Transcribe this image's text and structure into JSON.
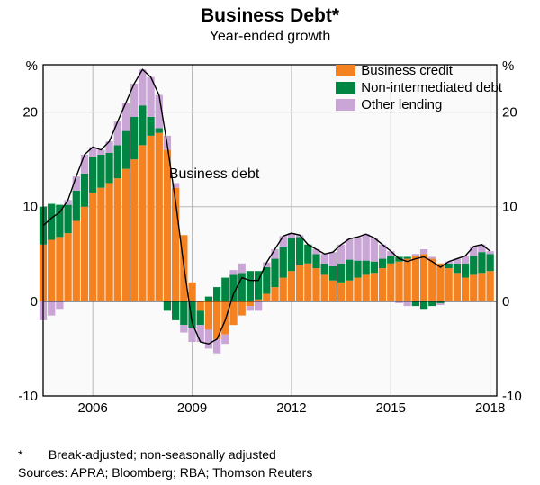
{
  "title": "Business Debt*",
  "subtitle": "Year-ended growth",
  "chart": {
    "type": "stacked-area-bar-with-line",
    "x_start_year": 2004.5,
    "x_end_year": 2018.2,
    "x_ticks_years": [
      2006,
      2009,
      2012,
      2015,
      2018
    ],
    "ylim": [
      -10,
      25
    ],
    "y_ticks": [
      -10,
      0,
      10,
      20
    ],
    "y_unit": "%",
    "background_color": "#ffffff",
    "plot_bg": "#fafafa",
    "grid_color": "#b8b8b8",
    "border_color": "#000000",
    "line_color": "#000000",
    "line_width": 1.4,
    "series_colors": {
      "business_credit": "#f58220",
      "non_intermediated": "#008542",
      "other_lending": "#c9a6d6"
    },
    "legend_items": [
      {
        "label": "Business credit",
        "color": "#f58220"
      },
      {
        "label": "Non-intermediated debt",
        "color": "#008542"
      },
      {
        "label": "Other lending",
        "color": "#c9a6d6"
      }
    ],
    "annotation": {
      "text": "Business debt",
      "year": 2008.3,
      "y": 13
    },
    "data": [
      {
        "yr": 2004.5,
        "credit": 6.0,
        "non": 4.0,
        "other": -2.0
      },
      {
        "yr": 2004.75,
        "credit": 6.5,
        "non": 3.8,
        "other": -1.5
      },
      {
        "yr": 2005.0,
        "credit": 6.8,
        "non": 3.4,
        "other": -0.8
      },
      {
        "yr": 2005.25,
        "credit": 7.2,
        "non": 3.0,
        "other": 0.5
      },
      {
        "yr": 2005.5,
        "credit": 8.5,
        "non": 3.2,
        "other": 1.5
      },
      {
        "yr": 2005.75,
        "credit": 10.0,
        "non": 3.5,
        "other": 2.0
      },
      {
        "yr": 2006.0,
        "credit": 11.5,
        "non": 3.8,
        "other": 1.0
      },
      {
        "yr": 2006.25,
        "credit": 12.0,
        "non": 3.5,
        "other": 0.5
      },
      {
        "yr": 2006.5,
        "credit": 12.5,
        "non": 3.2,
        "other": 1.2
      },
      {
        "yr": 2006.75,
        "credit": 13.0,
        "non": 3.5,
        "other": 2.5
      },
      {
        "yr": 2007.0,
        "credit": 14.0,
        "non": 4.0,
        "other": 3.0
      },
      {
        "yr": 2007.25,
        "credit": 15.0,
        "non": 4.5,
        "other": 3.5
      },
      {
        "yr": 2007.5,
        "credit": 16.5,
        "non": 4.2,
        "other": 3.8
      },
      {
        "yr": 2007.75,
        "credit": 17.5,
        "non": 2.0,
        "other": 4.2
      },
      {
        "yr": 2008.0,
        "credit": 17.8,
        "non": 0.5,
        "other": 3.5
      },
      {
        "yr": 2008.25,
        "credit": 16.0,
        "non": -1.0,
        "other": 1.5
      },
      {
        "yr": 2008.5,
        "credit": 12.0,
        "non": -2.0,
        "other": 0.5
      },
      {
        "yr": 2008.75,
        "credit": 7.0,
        "non": -2.5,
        "other": -0.8
      },
      {
        "yr": 2009.0,
        "credit": 2.0,
        "non": -2.8,
        "other": -1.5
      },
      {
        "yr": 2009.25,
        "credit": -1.0,
        "non": -1.5,
        "other": -1.8
      },
      {
        "yr": 2009.5,
        "credit": -3.0,
        "non": 0.5,
        "other": -2.0
      },
      {
        "yr": 2009.75,
        "credit": -4.0,
        "non": 1.5,
        "other": -1.5
      },
      {
        "yr": 2010.0,
        "credit": -3.5,
        "non": 2.5,
        "other": -1.0
      },
      {
        "yr": 2010.25,
        "credit": -2.5,
        "non": 2.8,
        "other": 0.5
      },
      {
        "yr": 2010.5,
        "credit": -1.5,
        "non": 3.0,
        "other": 1.0
      },
      {
        "yr": 2010.75,
        "credit": -0.5,
        "non": 3.2,
        "other": -0.5
      },
      {
        "yr": 2011.0,
        "credit": 0.2,
        "non": 3.0,
        "other": -1.0
      },
      {
        "yr": 2011.25,
        "credit": 0.8,
        "non": 2.8,
        "other": 0.5
      },
      {
        "yr": 2011.5,
        "credit": 1.5,
        "non": 3.0,
        "other": 1.0
      },
      {
        "yr": 2011.75,
        "credit": 2.5,
        "non": 3.2,
        "other": 1.2
      },
      {
        "yr": 2012.0,
        "credit": 3.2,
        "non": 3.5,
        "other": 0.5
      },
      {
        "yr": 2012.25,
        "credit": 3.8,
        "non": 3.0,
        "other": 0.2
      },
      {
        "yr": 2012.5,
        "credit": 4.0,
        "non": 2.0,
        "other": 0.0
      },
      {
        "yr": 2012.75,
        "credit": 3.5,
        "non": 1.5,
        "other": 0.5
      },
      {
        "yr": 2013.0,
        "credit": 2.8,
        "non": 1.2,
        "other": 1.0
      },
      {
        "yr": 2013.25,
        "credit": 2.2,
        "non": 1.5,
        "other": 1.5
      },
      {
        "yr": 2013.5,
        "credit": 2.0,
        "non": 2.0,
        "other": 2.0
      },
      {
        "yr": 2013.75,
        "credit": 2.2,
        "non": 2.2,
        "other": 2.2
      },
      {
        "yr": 2014.0,
        "credit": 2.5,
        "non": 1.8,
        "other": 2.5
      },
      {
        "yr": 2014.25,
        "credit": 2.8,
        "non": 1.5,
        "other": 2.8
      },
      {
        "yr": 2014.5,
        "credit": 3.0,
        "non": 1.2,
        "other": 2.5
      },
      {
        "yr": 2014.75,
        "credit": 3.5,
        "non": 1.0,
        "other": 1.5
      },
      {
        "yr": 2015.0,
        "credit": 4.0,
        "non": 0.8,
        "other": 0.5
      },
      {
        "yr": 2015.25,
        "credit": 4.2,
        "non": 0.5,
        "other": -0.2
      },
      {
        "yr": 2015.5,
        "credit": 4.5,
        "non": 0.2,
        "other": -0.5
      },
      {
        "yr": 2015.75,
        "credit": 4.8,
        "non": -0.5,
        "other": 0.2
      },
      {
        "yr": 2016.0,
        "credit": 5.0,
        "non": -0.8,
        "other": 0.5
      },
      {
        "yr": 2016.25,
        "credit": 4.5,
        "non": -0.5,
        "other": 0.2
      },
      {
        "yr": 2016.5,
        "credit": 4.0,
        "non": -0.2,
        "other": -0.2
      },
      {
        "yr": 2016.75,
        "credit": 3.5,
        "non": 0.5,
        "other": 0.2
      },
      {
        "yr": 2017.0,
        "credit": 3.0,
        "non": 1.0,
        "other": 0.5
      },
      {
        "yr": 2017.25,
        "credit": 2.5,
        "non": 1.5,
        "other": 0.8
      },
      {
        "yr": 2017.5,
        "credit": 2.8,
        "non": 2.0,
        "other": 1.0
      },
      {
        "yr": 2017.75,
        "credit": 3.0,
        "non": 2.2,
        "other": 0.8
      },
      {
        "yr": 2018.0,
        "credit": 3.2,
        "non": 1.8,
        "other": 0.3
      }
    ]
  },
  "footnote": {
    "marker": "*",
    "text": "Break-adjusted; non-seasonally adjusted"
  },
  "sources": "Sources: APRA; Bloomberg; RBA; Thomson Reuters"
}
